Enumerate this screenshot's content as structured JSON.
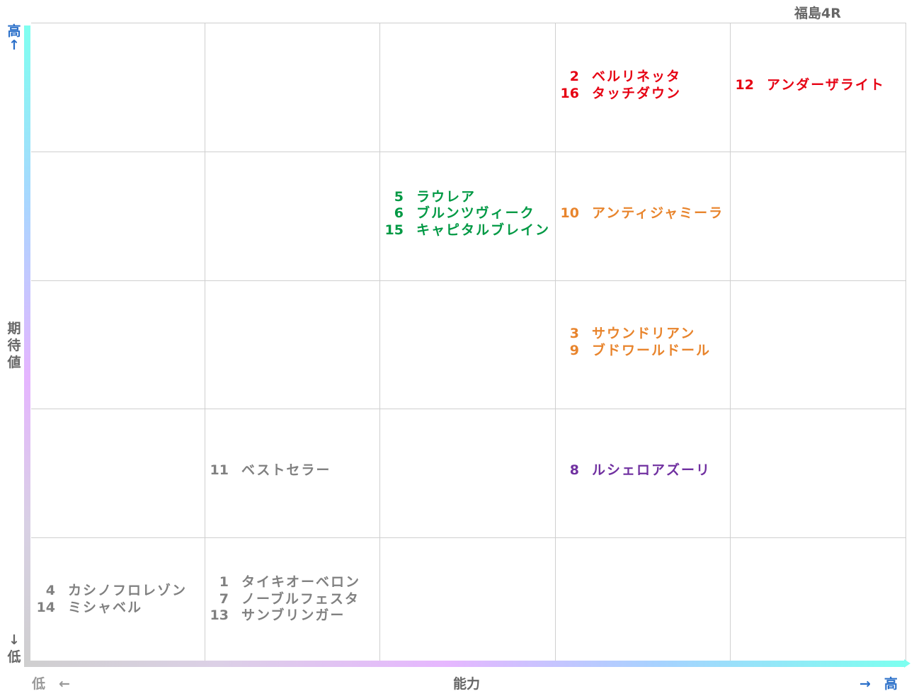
{
  "chart_data": {
    "type": "table",
    "title": "福島4R",
    "xlabel": "能力",
    "ylabel": "期待値",
    "x_low_label": "低　←",
    "x_high_label": "→　高",
    "y_high_label": "高↑",
    "y_low_label": "↓低",
    "columns": 5,
    "rows": 5,
    "colors": {
      "red": "#e60012",
      "orange": "#e8842c",
      "green": "#009944",
      "purple": "#7030a0",
      "gray": "#808080"
    },
    "cells": [
      {
        "row": 1,
        "col": 4,
        "color": "red",
        "entries": [
          {
            "num": "2",
            "name": "ベルリネッタ"
          },
          {
            "num": "16",
            "name": "タッチダウン"
          }
        ]
      },
      {
        "row": 1,
        "col": 5,
        "color": "red",
        "entries": [
          {
            "num": "12",
            "name": "アンダーザライト"
          }
        ]
      },
      {
        "row": 2,
        "col": 3,
        "color": "green",
        "entries": [
          {
            "num": "5",
            "name": "ラウレア"
          },
          {
            "num": "6",
            "name": "ブルンツヴィーク"
          },
          {
            "num": "15",
            "name": "キャピタルブレイン"
          }
        ]
      },
      {
        "row": 2,
        "col": 4,
        "color": "orange",
        "entries": [
          {
            "num": "10",
            "name": "アンティジャミーラ"
          }
        ]
      },
      {
        "row": 3,
        "col": 4,
        "color": "orange",
        "entries": [
          {
            "num": "3",
            "name": "サウンドリアン"
          },
          {
            "num": "9",
            "name": "ブドワールドール"
          }
        ]
      },
      {
        "row": 4,
        "col": 2,
        "color": "gray",
        "entries": [
          {
            "num": "11",
            "name": "ベストセラー"
          }
        ]
      },
      {
        "row": 4,
        "col": 4,
        "color": "purple",
        "entries": [
          {
            "num": "8",
            "name": "ルシェロアズーリ"
          }
        ]
      },
      {
        "row": 5,
        "col": 1,
        "color": "gray",
        "entries": [
          {
            "num": "4",
            "name": "カシノフロレゾン"
          },
          {
            "num": "14",
            "name": "ミシャベル"
          }
        ]
      },
      {
        "row": 5,
        "col": 2,
        "color": "gray",
        "entries": [
          {
            "num": "1",
            "name": "タイキオーベロン"
          },
          {
            "num": "7",
            "name": "ノーブルフェスタ"
          },
          {
            "num": "13",
            "name": "サンブリンガー"
          }
        ]
      }
    ]
  }
}
